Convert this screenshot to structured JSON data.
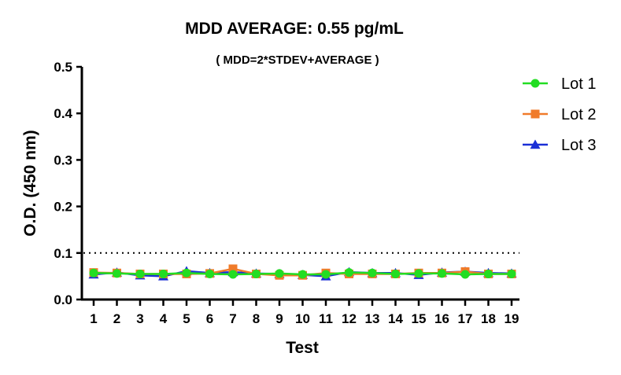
{
  "chart_data": {
    "type": "line",
    "title": "MDD AVERAGE:  0.55 pg/mL",
    "subtitle": "( MDD=2*STDEV+AVERAGE )",
    "xlabel": "Test",
    "ylabel": "O.D. (450 nm)",
    "ylim": [
      0,
      0.5
    ],
    "yticks": [
      "0.0",
      "0.1",
      "0.2",
      "0.3",
      "0.4",
      "0.5"
    ],
    "categories": [
      "1",
      "2",
      "3",
      "4",
      "5",
      "6",
      "7",
      "8",
      "9",
      "10",
      "11",
      "12",
      "13",
      "14",
      "15",
      "16",
      "17",
      "18",
      "19"
    ],
    "reference_line": {
      "y": 0.1,
      "style": "dotted"
    },
    "legend_position": "right",
    "grid": false,
    "series": [
      {
        "name": "Lot 1",
        "color": "#22dd22",
        "marker": "circle",
        "values": [
          0.057,
          0.056,
          0.055,
          0.055,
          0.057,
          0.055,
          0.054,
          0.055,
          0.056,
          0.054,
          0.054,
          0.058,
          0.057,
          0.055,
          0.056,
          0.056,
          0.054,
          0.055,
          0.055
        ]
      },
      {
        "name": "Lot 2",
        "color": "#f07b2a",
        "marker": "square",
        "values": [
          0.058,
          0.057,
          0.055,
          0.055,
          0.055,
          0.056,
          0.066,
          0.055,
          0.052,
          0.052,
          0.057,
          0.055,
          0.055,
          0.055,
          0.057,
          0.057,
          0.06,
          0.055,
          0.055
        ]
      },
      {
        "name": "Lot 3",
        "color": "#1a2fd6",
        "marker": "triangle",
        "values": [
          0.054,
          0.058,
          0.052,
          0.05,
          0.061,
          0.057,
          0.059,
          0.056,
          0.055,
          0.053,
          0.05,
          0.059,
          0.057,
          0.057,
          0.053,
          0.058,
          0.06,
          0.057,
          0.056
        ]
      }
    ]
  }
}
